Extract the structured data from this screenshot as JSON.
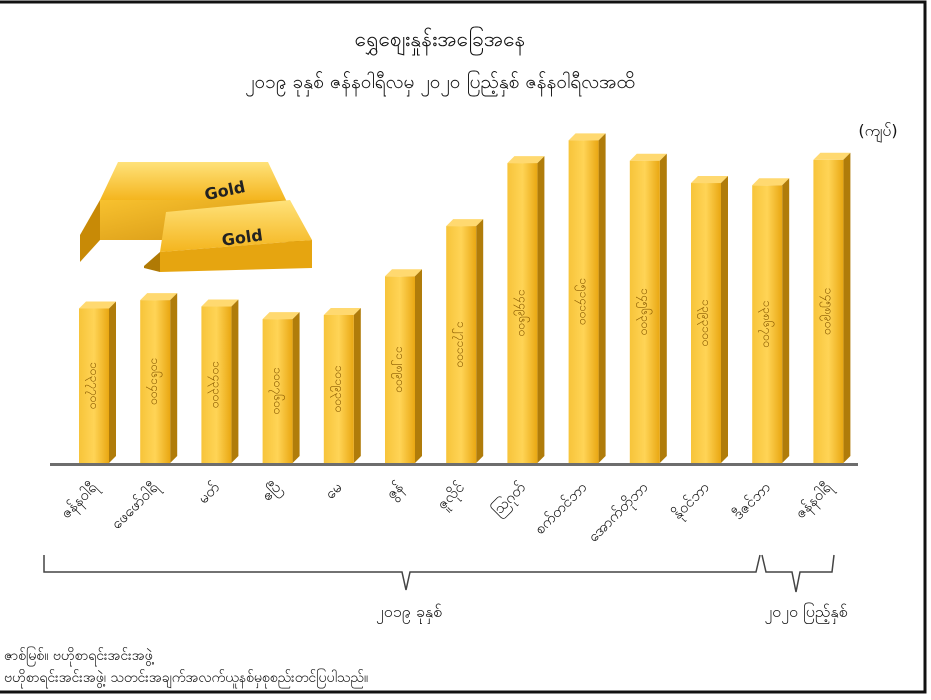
{
  "header": {
    "title": "ရွှေစျေးနှုန်းအခြေအနေ",
    "subtitle": "၂၀၁၉ ခုနှစ် ဇန်နဝါရီလမှ ၂၀၂၀ ပြည့်နှစ် ဇန်နဝါရီလအထိ"
  },
  "unit_label": "(ကျပ်)",
  "gold_bars": {
    "label_1": "Gold",
    "label_2": "Gold"
  },
  "groups": {
    "year_2019": "၂၀၁၉ ခုနှစ်",
    "year_2020": "၂၀၂၀ ပြည့်နှစ်"
  },
  "footer": {
    "line_1": "ဇာစ်မြစ်။ ဗဟိုစာရင်းအင်းအဖွဲ့",
    "line_2": "ဗဟိုစာရင်းအင်းအဖွဲ့၊ သတင်းအချက်အလက်ယူနစ်မှစုစည်းတင်ပြပါသည်။"
  },
  "colors": {
    "bar_front": "#F2B21A",
    "bar_side": "#B07C0A",
    "bar_top": "#FFD970",
    "axis": "#666666",
    "text": "#111111",
    "border": "#111111"
  },
  "chart_data": {
    "type": "bar",
    "categories": [
      "ဇန်နဝါရီ",
      "ဖေဖော်ဝါရီ",
      "မတ်",
      "ဧပြီ",
      "မေ",
      "ဇွန်",
      "ဇူလိုင်",
      "ဩဂုတ်",
      "စက်တင်ဘာ",
      "အောက်တိုဘာ",
      "နိုဝင်ဘာ",
      "ဒီဇင်ဘာ",
      "ဇန်နဝါရီ"
    ],
    "values": [
      1037700,
      1061400,
      1043300,
      1007600,
      1019300,
      1128900,
      1271100,
      1449600,
      1514100,
      1456300,
      1393100,
      1386700,
      1458900
    ],
    "value_labels": [
      "၁၀၃၇၇၀၀",
      "၁၀၆၁၄၀၀",
      "၁၀၄၃၃၀၀",
      "၁၀၀၇၆၀၀",
      "၁၀၁၉၃၀၀",
      "၁၁၂၈၉၀၀",
      "၁၂၇၁၁၀၀",
      "၁၄၄၉၆၀၀",
      "၁၅၁၄၁၀၀",
      "၁၄၅၆၃၀၀",
      "၁၃၉၃၁၀၀",
      "၁၃၈၆၇၀၀",
      "၁၄၅၈၉၀၀"
    ],
    "ylim": [
      600000,
      1600000
    ],
    "grid": false,
    "title": "ရွှေစျေးနှုန်းအခြေအနေ",
    "ylabel": "(ကျပ်)"
  }
}
